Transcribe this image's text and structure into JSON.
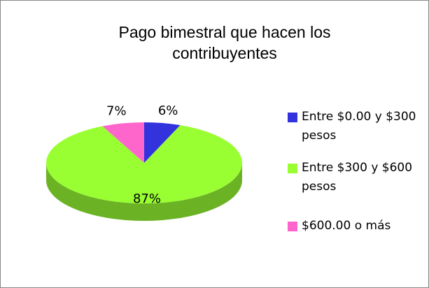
{
  "chart_data": {
    "type": "pie",
    "title": "Pago bimestral que hacen los contribuyentes",
    "categories": [
      "Entre $0.00 y $300 pesos",
      "Entre $300 y $600 pesos",
      "$600.00 o más"
    ],
    "values": [
      6,
      87,
      7
    ],
    "value_labels": [
      "6%",
      "87%",
      "7%"
    ],
    "colors": [
      "#3333dd",
      "#99ff33",
      "#ff66cc"
    ],
    "legend": "right"
  }
}
